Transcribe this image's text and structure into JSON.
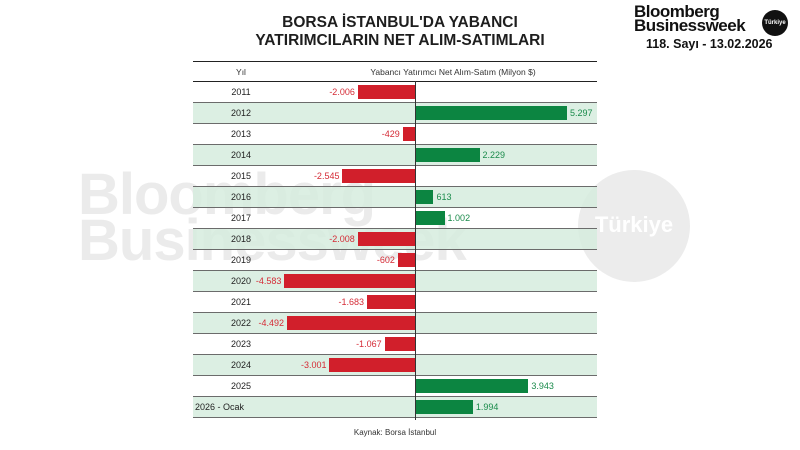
{
  "title": {
    "line1": "BORSA İSTANBUL'DA YABANCI",
    "line2": "YATIRIMCILARIN NET ALIM-SATIMLARI"
  },
  "brand": {
    "line1": "Bloomberg",
    "line2": "Businessweek",
    "badge": "Türkiye",
    "issue": "118. Sayı - 13.02.2026"
  },
  "watermark": {
    "line1": "Bloomberg",
    "line2": "Businessweek",
    "badge": "Türkiye"
  },
  "table": {
    "col_year": "Yıl",
    "col_value": "Yabancı Yatırımcı Net Alım-Satım (Milyon $)"
  },
  "source": "Kaynak: Borsa İstanbul",
  "colors": {
    "negative": "#d11f2b",
    "positive": "#0c8541",
    "alt_row": "#d6ecde"
  },
  "chart_data": {
    "type": "bar",
    "orientation": "horizontal",
    "title": "BORSA İSTANBUL'DA YABANCI YATIRIMCILARIN NET ALIM-SATIMLARI",
    "xlabel": "Yabancı Yatırımcı Net Alım-Satım (Milyon $)",
    "ylabel": "Yıl",
    "categories": [
      "2011",
      "2012",
      "2013",
      "2014",
      "2015",
      "2016",
      "2017",
      "2018",
      "2019",
      "2020",
      "2021",
      "2022",
      "2023",
      "2024",
      "2025",
      "2026 - Ocak"
    ],
    "values": [
      -2006,
      5297,
      -429,
      2229,
      -2545,
      613,
      1002,
      -2008,
      -602,
      -4583,
      -1683,
      -4492,
      -1067,
      -3001,
      3943,
      1994
    ],
    "labels": [
      "-2.006",
      "5.297",
      "-429",
      "2.229",
      "-2.545",
      "613",
      "1.002",
      "-2.008",
      "-602",
      "-4.583",
      "-1.683",
      "-4.492",
      "-1.067",
      "-3.001",
      "3.943",
      "1.994"
    ],
    "units": "Milyon $",
    "source": "Kaynak: Borsa İstanbul",
    "grid": false,
    "legend": null
  }
}
